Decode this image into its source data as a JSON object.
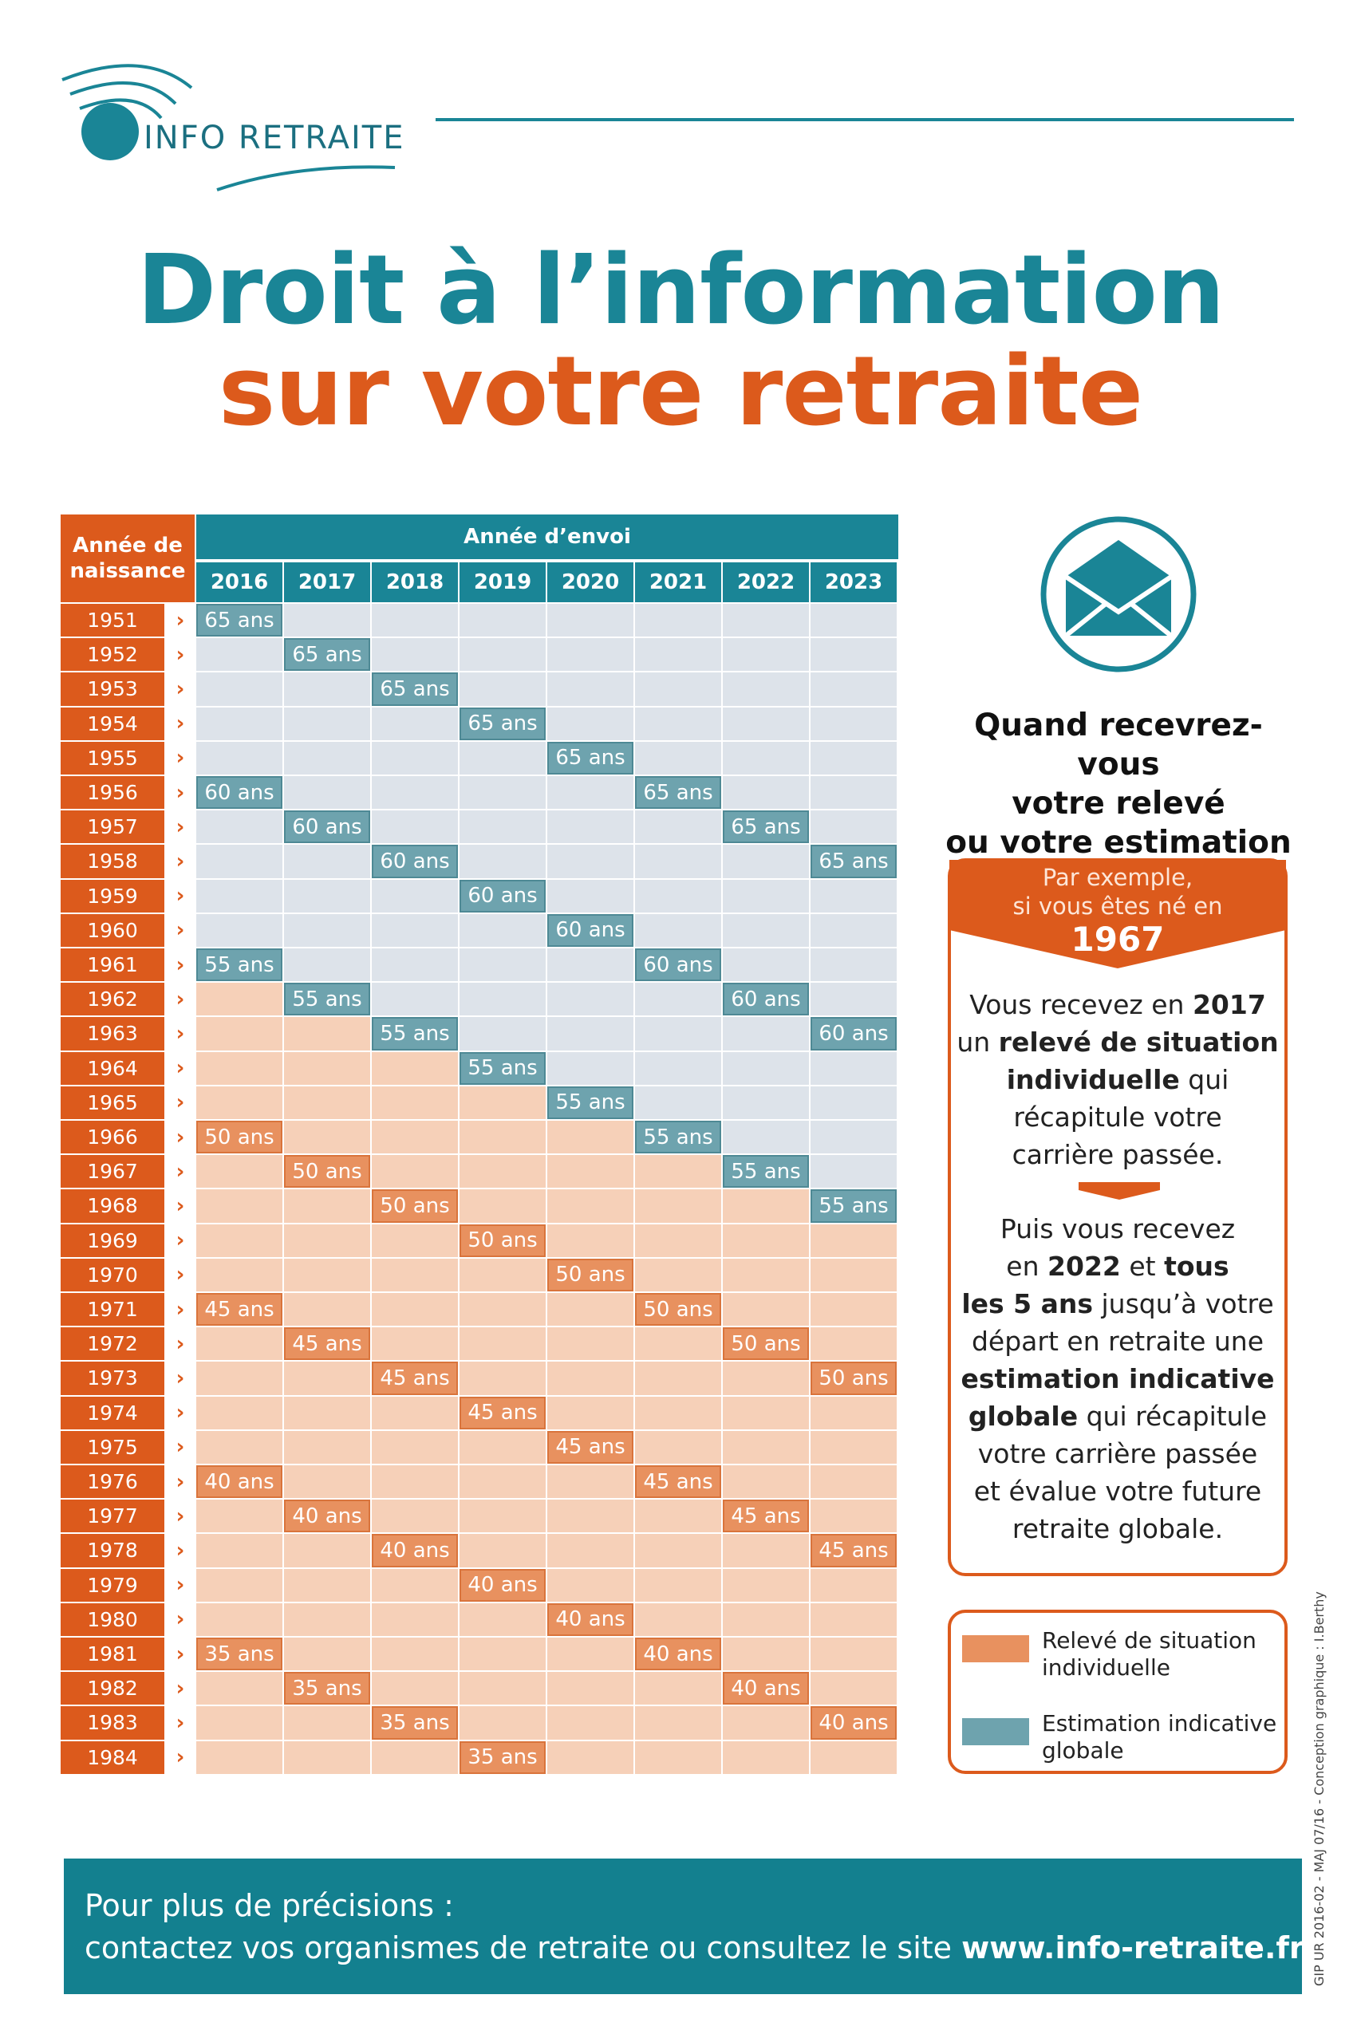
{
  "header": {
    "logo_text": "INFO RETRAITE"
  },
  "title": {
    "line1": "Droit à l’information",
    "line2": "sur votre retraite"
  },
  "table": {
    "corner_label_line1": "Année de",
    "corner_label_line2": "naissance",
    "header_label": "Année d’envoi",
    "years": [
      "2016",
      "2017",
      "2018",
      "2019",
      "2020",
      "2021",
      "2022",
      "2023"
    ],
    "birth_years": [
      "1951",
      "1952",
      "1953",
      "1954",
      "1955",
      "1956",
      "1957",
      "1958",
      "1959",
      "1960",
      "1961",
      "1962",
      "1963",
      "1964",
      "1965",
      "1966",
      "1967",
      "1968",
      "1969",
      "1970",
      "1971",
      "1972",
      "1973",
      "1974",
      "1975",
      "1976",
      "1977",
      "1978",
      "1979",
      "1980",
      "1981",
      "1982",
      "1983",
      "1984"
    ],
    "cell_type_colors": {
      "estimation": "#6ea3ae",
      "releve": "#e8915f",
      "bg_estimation": "#dde3ea",
      "bg_releve": "#f6d0b8"
    }
  },
  "aside": {
    "icon": "envelope-icon",
    "question": [
      "Quand recevrez-vous",
      "votre relevé",
      "ou votre estimation ?"
    ],
    "example": {
      "line1": "Par exemple,",
      "line2": "si vous êtes né en",
      "year": "1967"
    },
    "para1": [
      {
        "t": "Vous recevez en ",
        "b": "2017"
      },
      {
        "t": "un ",
        "b": "relevé de situation"
      },
      {
        "b": "individuelle",
        "t": " qui"
      },
      {
        "t": "récapitule votre"
      },
      {
        "t": "carrière passée."
      }
    ],
    "para2": [
      {
        "t": "Puis vous recevez"
      },
      {
        "t": "en ",
        "b": "2022",
        "t2": " et ",
        "b2": "tous"
      },
      {
        "b": "les 5 ans",
        "t": " jusqu’à votre"
      },
      {
        "t": "départ en retraite une"
      },
      {
        "b": "estimation indicative"
      },
      {
        "b": "globale",
        "t": " qui récapitule"
      },
      {
        "t": "votre carrière passée"
      },
      {
        "t": "et évalue votre future"
      },
      {
        "t": "retraite globale."
      }
    ]
  },
  "legend": {
    "item1": "Relevé de situation individuelle",
    "item2": "Estimation indicative globale"
  },
  "credit": "GIP UR 2016-02 - MAJ 07/16 - Conception graphique : I.Berthy",
  "footer": {
    "line1": "Pour plus de précisions :",
    "line2_prefix": "contactez vos organismes de retraite ou consultez le site ",
    "line2_url": "www.info-retraite.fr",
    "line2_suffix": "."
  }
}
